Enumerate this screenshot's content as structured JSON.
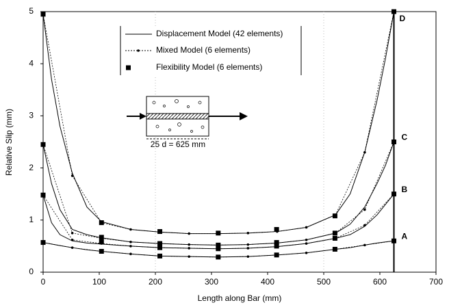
{
  "chart_data": {
    "type": "line",
    "xlabel": "Length along Bar (mm)",
    "ylabel": "Relative Slip (mm)",
    "annotation": "25 d = 625 mm",
    "xlim": [
      0,
      700
    ],
    "xticks": [
      0,
      100,
      200,
      300,
      400,
      500,
      600,
      700
    ],
    "ylim": [
      0,
      5
    ],
    "yticks": [
      0,
      1,
      2,
      3,
      4,
      5
    ],
    "curve_labels": [
      "D",
      "C",
      "B",
      "A"
    ],
    "color": "#000000",
    "series": [
      {
        "name": "Displacement Model (42 elements)",
        "style": "solid",
        "x": [
          0,
          15,
          30,
          52,
          78,
          104,
          156,
          208,
          260,
          312,
          365,
          417,
          469,
          521,
          547,
          573,
          595,
          610,
          625
        ],
        "curves": [
          {
            "values": [
              4.95,
              3.7,
              2.8,
              1.9,
              1.25,
              0.97,
              0.82,
              0.77,
              0.74,
              0.74,
              0.75,
              0.78,
              0.86,
              1.1,
              1.5,
              2.3,
              3.3,
              4.1,
              5.0
            ]
          },
          {
            "values": [
              2.45,
              1.7,
              1.2,
              0.82,
              0.72,
              0.66,
              0.58,
              0.55,
              0.53,
              0.52,
              0.53,
              0.56,
              0.62,
              0.75,
              0.92,
              1.25,
              1.7,
              2.05,
              2.5
            ]
          },
          {
            "values": [
              1.48,
              0.95,
              0.72,
              0.6,
              0.56,
              0.54,
              0.5,
              0.47,
              0.46,
              0.45,
              0.46,
              0.49,
              0.55,
              0.65,
              0.72,
              0.88,
              1.1,
              1.3,
              1.5
            ]
          },
          {
            "values": [
              0.57,
              0.54,
              0.51,
              0.47,
              0.43,
              0.4,
              0.35,
              0.31,
              0.3,
              0.29,
              0.3,
              0.33,
              0.37,
              0.44,
              0.47,
              0.52,
              0.56,
              0.58,
              0.6
            ]
          }
        ]
      },
      {
        "name": "Mixed Model (6 elements)",
        "style": "dotted",
        "x": [
          0,
          52,
          104,
          156,
          208,
          260,
          312,
          365,
          417,
          469,
          521,
          573,
          625
        ],
        "curves": [
          {
            "values": [
              4.95,
              1.85,
              0.95,
              0.82,
              0.77,
              0.74,
              0.74,
              0.75,
              0.78,
              0.86,
              1.1,
              2.3,
              5.0
            ]
          },
          {
            "values": [
              2.45,
              0.75,
              0.65,
              0.58,
              0.55,
              0.53,
              0.52,
              0.53,
              0.56,
              0.62,
              0.75,
              1.2,
              2.5
            ]
          },
          {
            "values": [
              1.48,
              0.62,
              0.55,
              0.5,
              0.47,
              0.46,
              0.45,
              0.46,
              0.49,
              0.55,
              0.65,
              0.9,
              1.5
            ]
          },
          {
            "values": [
              0.57,
              0.47,
              0.4,
              0.35,
              0.31,
              0.3,
              0.29,
              0.3,
              0.33,
              0.37,
              0.44,
              0.52,
              0.6
            ]
          }
        ]
      },
      {
        "name": "Flexibility Model (6 elements)",
        "style": "squares",
        "x": [
          0,
          104,
          208,
          312,
          416,
          520,
          625
        ],
        "curves": [
          {
            "values": [
              4.95,
              0.95,
              0.78,
              0.75,
              0.82,
              1.08,
              5.0
            ]
          },
          {
            "values": [
              2.45,
              0.67,
              0.55,
              0.52,
              0.57,
              0.75,
              2.5
            ]
          },
          {
            "values": [
              1.48,
              0.58,
              0.47,
              0.45,
              0.5,
              0.65,
              1.5
            ]
          },
          {
            "values": [
              0.57,
              0.4,
              0.31,
              0.29,
              0.33,
              0.44,
              0.6
            ]
          }
        ]
      }
    ]
  }
}
